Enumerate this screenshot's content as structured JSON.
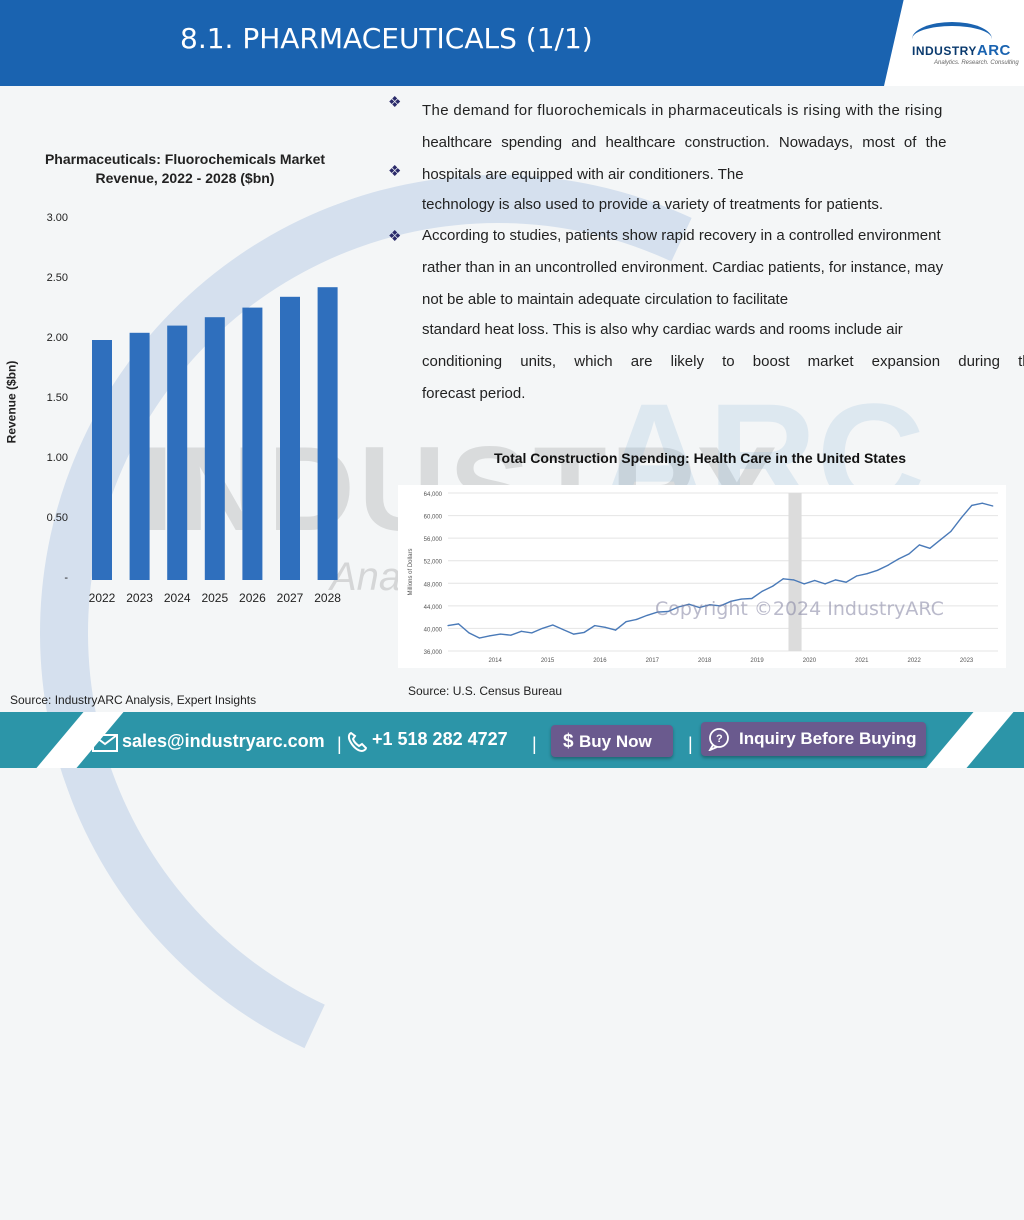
{
  "header": {
    "title": "8.1. PHARMACEUTICALS (1/1)"
  },
  "logo": {
    "prefix": "INDUSTRY",
    "suffix": "ARC",
    "tagline": "Analytics. Research. Consulting"
  },
  "watermark": {
    "main": "INDUSTRY",
    "arc": "ARC",
    "sub": "Ana"
  },
  "left_chart": {
    "title_line1": "Pharmaceuticals: Fluorochemicals Market",
    "title_line2": "Revenue, 2022 - 2028 ($bn)",
    "ylabel": "Revenue ($bn)",
    "yticks": [
      "3.00",
      "2.50",
      "2.00",
      "1.50",
      "1.00",
      "0.50",
      "-"
    ],
    "source": "Source: IndustryARC Analysis, Expert Insights"
  },
  "bullets": {
    "p1_lines": [
      "The demand for fluorochemicals in pharmaceuticals is rising with the rising",
      "healthcare spending and healthcare construction. Nowadays, most of the",
      "hospitals are equipped with air conditioners. The"
    ],
    "p2_line": "technology is also used to provide a variety of treatments for patients.",
    "p3_lines": [
      "According to studies, patients show rapid recovery in a controlled environment",
      "rather than in an uncontrolled environment. Cardiac patients, for instance, may",
      "not be able to maintain adequate circulation to facilitate"
    ],
    "p4_lines": [
      "standard heat loss. This is also why cardiac wards and rooms include air",
      "conditioning units, which are likely to boost market expansion during the",
      "forecast period."
    ]
  },
  "right_chart": {
    "title": "Total Construction Spending: Health Care in the United States",
    "ylabel": "Millions of Dollars",
    "source": "Source: U.S. Census Bureau",
    "copyright": "Copyright ©2024 IndustryARC"
  },
  "footer": {
    "email": "sales@industryarc.com",
    "phone": "+1 518 282 4727",
    "buy_label": "Buy Now",
    "inquiry_label": "Inquiry Before Buying",
    "sep": "|"
  },
  "colors": {
    "header": "#1a63b0",
    "footer": "#2c95a8",
    "bar": "#2f6fbd",
    "line": "#4a7ab8",
    "button": "#6a5a8e"
  },
  "chart_data": [
    {
      "type": "bar",
      "title": "Pharmaceuticals: Fluorochemicals Market Revenue, 2022 - 2028 ($bn)",
      "xlabel": "",
      "ylabel": "Revenue ($bn)",
      "categories": [
        "2022",
        "2023",
        "2024",
        "2025",
        "2026",
        "2027",
        "2028"
      ],
      "values": [
        2.0,
        2.06,
        2.12,
        2.19,
        2.27,
        2.36,
        2.44
      ],
      "ylim": [
        0,
        3.0
      ],
      "grid": false
    },
    {
      "type": "line",
      "title": "Total Construction Spending: Health Care in the United States",
      "xlabel": "",
      "ylabel": "Millions of Dollars",
      "x_ticks": [
        "2014",
        "2015",
        "2016",
        "2017",
        "2018",
        "2019",
        "2020",
        "2021",
        "2022",
        "2023"
      ],
      "y_ticks": [
        "36,000",
        "40,000",
        "44,000",
        "48,000",
        "52,000",
        "56,000",
        "60,000",
        "64,000"
      ],
      "ylim": [
        36000,
        64000
      ],
      "xlim": [
        2013.6,
        2024.1
      ],
      "grid": true,
      "series": [
        {
          "x": [
            2013.6,
            2013.8,
            2014.0,
            2014.2,
            2014.4,
            2014.6,
            2014.8,
            2015.0,
            2015.2,
            2015.4,
            2015.6,
            2015.8,
            2016.0,
            2016.2,
            2016.4,
            2016.6,
            2016.8,
            2017.0,
            2017.2,
            2017.4,
            2017.6,
            2017.8,
            2018.0,
            2018.2,
            2018.4,
            2018.6,
            2018.8,
            2019.0,
            2019.2,
            2019.4,
            2019.6,
            2019.8,
            2020.0,
            2020.2,
            2020.4,
            2020.6,
            2020.8,
            2021.0,
            2021.2,
            2021.4,
            2021.6,
            2021.8,
            2022.0,
            2022.2,
            2022.4,
            2022.6,
            2022.8,
            2023.0,
            2023.2,
            2023.4,
            2023.6,
            2023.8,
            2024.0
          ],
          "y": [
            40500,
            40800,
            39200,
            38300,
            38700,
            39000,
            38800,
            39500,
            39200,
            40000,
            40600,
            39800,
            39000,
            39300,
            40500,
            40200,
            39700,
            41200,
            41600,
            42300,
            42900,
            43000,
            43800,
            44300,
            43700,
            44200,
            44000,
            44800,
            45200,
            45300,
            46600,
            47500,
            48800,
            48600,
            47900,
            48500,
            47900,
            48600,
            48200,
            49300,
            49700,
            50300,
            51200,
            52300,
            53200,
            54800,
            54200,
            55700,
            57200,
            59600,
            61800,
            62200,
            61700
          ]
        }
      ]
    }
  ]
}
